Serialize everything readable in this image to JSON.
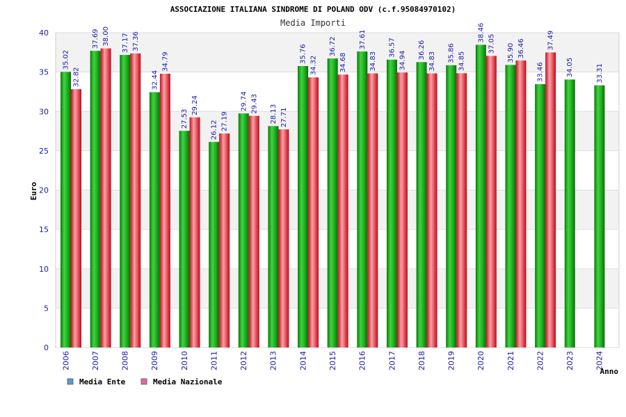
{
  "chart_data": {
    "type": "bar",
    "title": "ASSOCIAZIONE ITALIANA SINDROME DI POLAND ODV (c.f.95084970102)",
    "subtitle": "Media Importi",
    "xlabel": "Anno",
    "ylabel": "Euro",
    "ylim": [
      0,
      40
    ],
    "yticks": [
      "0",
      "5",
      "10",
      "15",
      "20",
      "25",
      "30",
      "35",
      "40"
    ],
    "grid": true,
    "legend_position": "bottom-left",
    "categories": [
      "2006",
      "2007",
      "2008",
      "2009",
      "2010",
      "2011",
      "2012",
      "2013",
      "2014",
      "2015",
      "2016",
      "2017",
      "2018",
      "2019",
      "2020",
      "2021",
      "2022",
      "2023",
      "2024"
    ],
    "series": [
      {
        "name": "Media Ente",
        "color": "#1fae1f",
        "legend_color": "#5b9bd5",
        "values": [
          35.02,
          37.69,
          37.17,
          32.44,
          27.53,
          26.12,
          29.74,
          28.13,
          35.76,
          36.72,
          37.61,
          36.57,
          36.26,
          35.86,
          38.46,
          35.9,
          33.46,
          34.05,
          33.31
        ],
        "labels": [
          "35.02",
          "37.69",
          "37.17",
          "32.44",
          "27.53",
          "26.12",
          "29.74",
          "28.13",
          "35.76",
          "36.72",
          "37.61",
          "36.57",
          "36.26",
          "35.86",
          "38.46",
          "35.90",
          "33.46",
          "34.05",
          "33.31"
        ]
      },
      {
        "name": "Media Nazionale",
        "color": "#e8283a",
        "legend_color": "#e06aa0",
        "values": [
          32.82,
          38.0,
          37.36,
          34.79,
          29.24,
          27.19,
          29.43,
          27.71,
          34.32,
          34.68,
          34.83,
          34.94,
          34.83,
          34.85,
          37.05,
          36.46,
          37.49,
          null,
          null
        ],
        "labels": [
          "32.82",
          "38.00",
          "37.36",
          "34.79",
          "29.24",
          "27.19",
          "29.43",
          "27.71",
          "34.32",
          "34.68",
          "34.83",
          "34.94",
          "34.83",
          "34.85",
          "37.05",
          "36.46",
          "37.49",
          null,
          null
        ]
      }
    ]
  }
}
